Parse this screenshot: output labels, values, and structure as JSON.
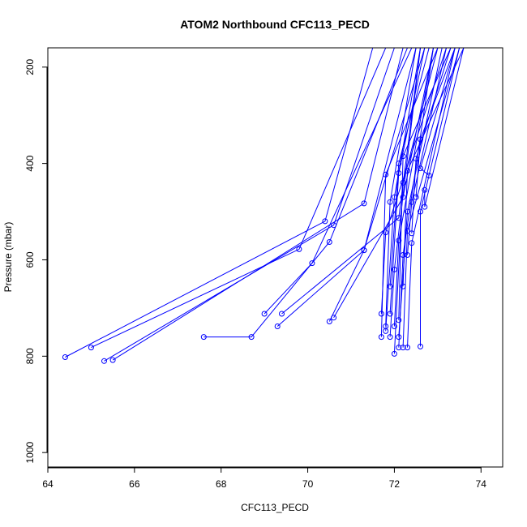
{
  "chart_data": {
    "type": "line",
    "title": "ATOM2 Northbound CFC113_PECD",
    "xlabel": "CFC113_PECD",
    "ylabel": "Pressure (mbar)",
    "xlim": [
      64,
      74.5
    ],
    "ylim": [
      1030,
      160
    ],
    "y_reversed": true,
    "xticks": [
      "64",
      "66",
      "68",
      "70",
      "72",
      "74"
    ],
    "yticks": [
      "200",
      "400",
      "600",
      "800",
      "1000"
    ],
    "grid": false,
    "legend": "none",
    "color": "#0000ff",
    "marker": "open-circle",
    "segments": [
      [
        [
          64.4,
          802
        ],
        [
          70.4,
          520
        ],
        [
          71.5,
          160
        ]
      ],
      [
        [
          65.0,
          782
        ],
        [
          69.8,
          578
        ],
        [
          71.8,
          160
        ]
      ],
      [
        [
          65.3,
          810
        ],
        [
          70.6,
          528
        ],
        [
          72.0,
          160
        ]
      ],
      [
        [
          65.5,
          808
        ],
        [
          71.3,
          483
        ],
        [
          72.2,
          160
        ]
      ],
      [
        [
          67.6,
          760
        ],
        [
          68.7,
          760
        ],
        [
          70.5,
          563
        ],
        [
          72.3,
          160
        ]
      ],
      [
        [
          69.0,
          712
        ],
        [
          70.1,
          607
        ],
        [
          72.4,
          160
        ]
      ],
      [
        [
          69.3,
          738
        ],
        [
          71.3,
          580
        ],
        [
          72.5,
          160
        ]
      ],
      [
        [
          69.4,
          712
        ],
        [
          72.1,
          513
        ],
        [
          72.6,
          160
        ]
      ],
      [
        [
          70.5,
          728
        ],
        [
          71.3,
          580
        ],
        [
          72.7,
          160
        ]
      ],
      [
        [
          70.6,
          720
        ],
        [
          72.2,
          470
        ],
        [
          72.9,
          160
        ]
      ],
      [
        [
          71.7,
          760
        ],
        [
          71.8,
          423
        ],
        [
          73.0,
          160
        ]
      ],
      [
        [
          71.7,
          712
        ],
        [
          71.8,
          543
        ],
        [
          73.2,
          160
        ]
      ],
      [
        [
          71.8,
          738
        ],
        [
          71.9,
          480
        ],
        [
          72.5,
          160
        ]
      ],
      [
        [
          71.8,
          748
        ],
        [
          72.0,
          470
        ],
        [
          72.6,
          160
        ]
      ],
      [
        [
          71.9,
          760
        ],
        [
          72.0,
          620
        ],
        [
          72.6,
          160
        ]
      ],
      [
        [
          71.9,
          712
        ],
        [
          72.1,
          420
        ],
        [
          72.7,
          160
        ]
      ],
      [
        [
          71.9,
          655
        ],
        [
          72.1,
          400
        ],
        [
          72.8,
          160
        ]
      ],
      [
        [
          72.0,
          738
        ],
        [
          72.1,
          560
        ],
        [
          72.9,
          160
        ]
      ],
      [
        [
          72.0,
          795
        ],
        [
          72.2,
          440
        ],
        [
          73.0,
          160
        ]
      ],
      [
        [
          72.1,
          782
        ],
        [
          72.2,
          590
        ],
        [
          72.9,
          160
        ]
      ],
      [
        [
          72.1,
          760
        ],
        [
          72.3,
          500
        ],
        [
          73.1,
          160
        ]
      ],
      [
        [
          72.1,
          725
        ],
        [
          72.2,
          385
        ],
        [
          73.3,
          160
        ]
      ],
      [
        [
          72.2,
          782
        ],
        [
          72.3,
          540
        ],
        [
          73.5,
          160
        ]
      ],
      [
        [
          72.2,
          655
        ],
        [
          72.3,
          415
        ],
        [
          73.6,
          160
        ]
      ],
      [
        [
          72.3,
          590
        ],
        [
          72.4,
          480
        ],
        [
          73.2,
          160
        ]
      ],
      [
        [
          72.3,
          782
        ],
        [
          72.4,
          565
        ],
        [
          73.4,
          160
        ]
      ],
      [
        [
          72.4,
          545
        ],
        [
          72.5,
          390
        ],
        [
          73.3,
          160
        ]
      ],
      [
        [
          72.5,
          470
        ],
        [
          72.6,
          350
        ],
        [
          73.4,
          160
        ]
      ],
      [
        [
          72.6,
          780
        ],
        [
          72.6,
          500
        ],
        [
          73.5,
          160
        ]
      ],
      [
        [
          72.7,
          455
        ],
        [
          72.7,
          490
        ],
        [
          73.6,
          160
        ]
      ],
      [
        [
          72.8,
          425
        ],
        [
          72.6,
          410
        ],
        [
          73.4,
          160
        ]
      ]
    ]
  }
}
